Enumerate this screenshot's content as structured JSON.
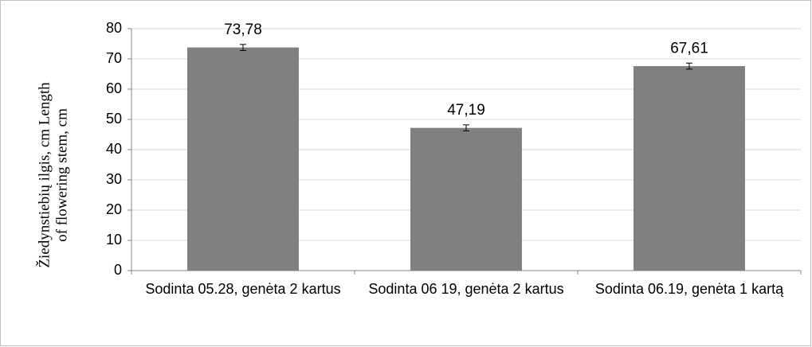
{
  "chart_data": {
    "type": "bar",
    "ylabel": [
      "Žiedynstiebių ilgis, cm Length",
      "of flowering stem, cm"
    ],
    "categories": [
      "Sodinta 05.28, genėta 2 kartus",
      "Sodinta 06 19, genėta 2 kartus",
      "Sodinta 06.19, genėta 1 kartą"
    ],
    "values": [
      73.78,
      47.19,
      67.61
    ],
    "value_labels": [
      "73,78",
      "47,19",
      "67,61"
    ],
    "errors": [
      1.0,
      1.0,
      1.0
    ],
    "color": "#808080",
    "ylim": [
      0,
      80
    ],
    "yticks": [
      0,
      10,
      20,
      30,
      40,
      50,
      60,
      70,
      80
    ],
    "grid": true
  }
}
